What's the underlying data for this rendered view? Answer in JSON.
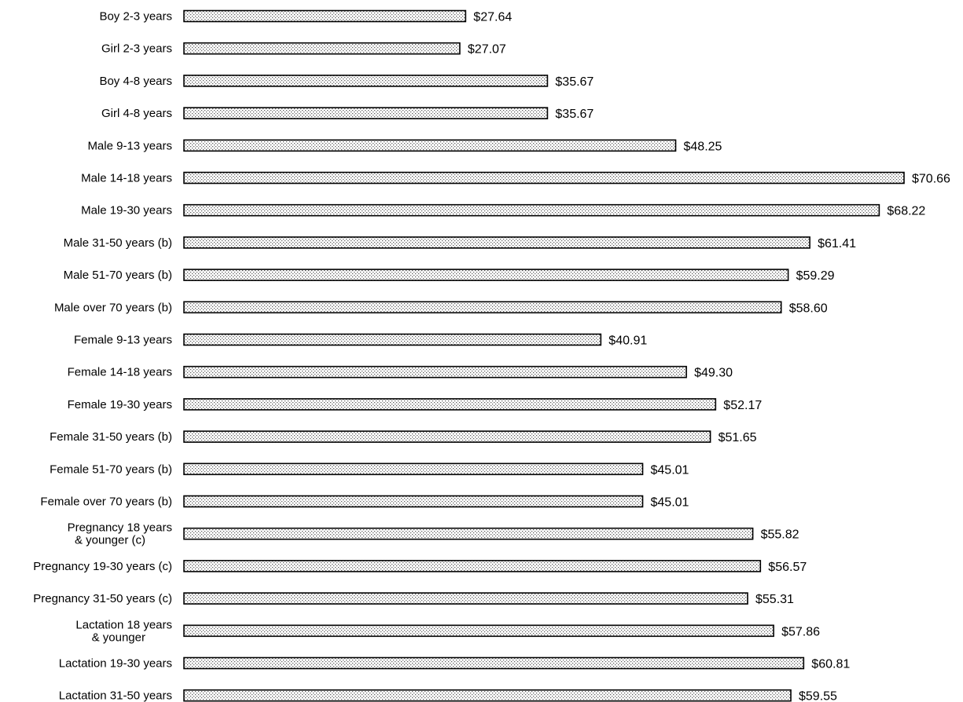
{
  "chart_data": {
    "type": "bar",
    "orientation": "horizontal",
    "title": "",
    "xlabel": "",
    "ylabel": "",
    "grid": false,
    "legend": "none",
    "value_prefix": "$",
    "categories": [
      "Boy 2-3 years",
      "Girl 2-3 years",
      "Boy 4-8 years",
      "Girl 4-8 years",
      "Male 9-13 years",
      "Male 14-18 years",
      "Male 19-30 years",
      "Male 31-50 years (b)",
      "Male 51-70 years (b)",
      "Male over 70 years (b)",
      "Female 9-13 years",
      "Female 14-18 years",
      "Female 19-30 years",
      "Female 31-50 years (b)",
      "Female 51-70 years (b)",
      "Female over 70 years (b)",
      "Pregnancy 18 years\n& younger (c)",
      "Pregnancy 19-30 years (c)",
      "Pregnancy 31-50 years (c)",
      "Lactation 18 years\n& younger",
      "Lactation 19-30 years",
      "Lactation 31-50 years"
    ],
    "values": [
      27.64,
      27.07,
      35.67,
      35.67,
      48.25,
      70.66,
      68.22,
      61.41,
      59.29,
      58.6,
      40.91,
      49.3,
      52.17,
      51.65,
      45.01,
      45.01,
      55.82,
      56.57,
      55.31,
      57.86,
      60.81,
      59.55
    ],
    "value_labels": [
      "$27.64",
      "$27.07",
      "$35.67",
      "$35.67",
      "$48.25",
      "$70.66",
      "$68.22",
      "$61.41",
      "$59.29",
      "$58.60",
      "$40.91",
      "$49.30",
      "$52.17",
      "$51.65",
      "$45.01",
      "$45.01",
      "$55.82",
      "$56.57",
      "$55.31",
      "$57.86",
      "$60.81",
      "$59.55"
    ],
    "xlim": [
      0,
      70.66
    ],
    "colors": {
      "bar_fill_base": "#ffffff",
      "bar_pattern_dot": "#555555",
      "bar_stroke": "#000000",
      "text": "#000000"
    }
  }
}
